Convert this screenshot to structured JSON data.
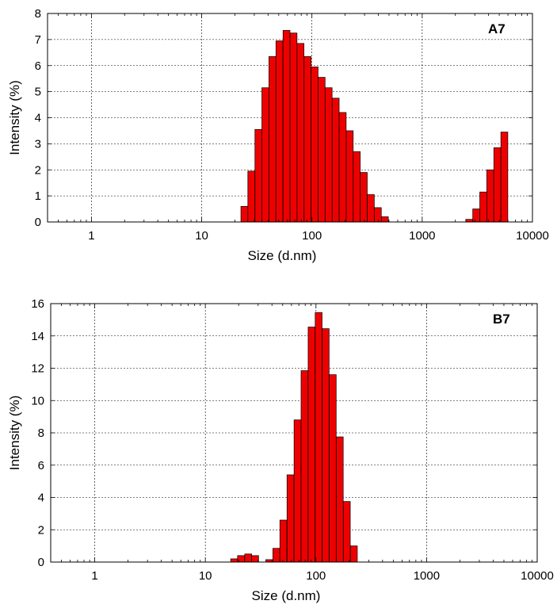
{
  "chart_data": [
    {
      "type": "bar",
      "panel_label": "A7",
      "xlabel": "Size (d.nm)",
      "ylabel": "Intensity (%)",
      "xscale": "log",
      "xlim": [
        0.4,
        10000
      ],
      "ylim": [
        0,
        8
      ],
      "xticks": [
        "1",
        "10",
        "100",
        "1000",
        "10000"
      ],
      "yticks": [
        "0",
        "1",
        "2",
        "3",
        "4",
        "5",
        "6",
        "7",
        "8"
      ],
      "grid": true,
      "x": [
        24.4,
        28.2,
        32.7,
        37.8,
        43.8,
        50.7,
        58.8,
        68.1,
        78.8,
        91.3,
        105.7,
        122.4,
        141.8,
        164.2,
        190.1,
        220.2,
        255.0,
        295.3,
        342.0,
        396.1,
        458.7,
        2669.0,
        3091.0,
        3580.0,
        4145.0,
        4801.0,
        5560.0
      ],
      "values": [
        0.6,
        1.95,
        3.55,
        5.15,
        6.35,
        6.95,
        7.35,
        7.25,
        6.85,
        6.35,
        5.95,
        5.55,
        5.15,
        4.75,
        4.2,
        3.5,
        2.7,
        1.9,
        1.05,
        0.55,
        0.2,
        0.1,
        0.5,
        1.15,
        2.0,
        2.85,
        3.45
      ]
    },
    {
      "type": "bar",
      "panel_label": "B7",
      "xlabel": "Size (d.nm)",
      "ylabel": "Intensity (%)",
      "xscale": "log",
      "xlim": [
        0.4,
        10000
      ],
      "ylim": [
        0,
        16
      ],
      "xticks": [
        "1",
        "10",
        "100",
        "1000",
        "10000"
      ],
      "yticks": [
        "0",
        "2",
        "4",
        "6",
        "8",
        "10",
        "12",
        "14",
        "16"
      ],
      "grid": true,
      "x": [
        18.2,
        21.0,
        24.4,
        28.2,
        32.7,
        37.8,
        43.8,
        50.7,
        58.8,
        68.1,
        78.8,
        91.3,
        105.7,
        122.4,
        141.8,
        164.2,
        190.1,
        220.2
      ],
      "values": [
        0.2,
        0.4,
        0.5,
        0.4,
        0.0,
        0.15,
        0.85,
        2.6,
        5.4,
        8.8,
        11.85,
        14.55,
        15.45,
        14.45,
        11.6,
        7.75,
        3.75,
        1.0
      ]
    }
  ]
}
